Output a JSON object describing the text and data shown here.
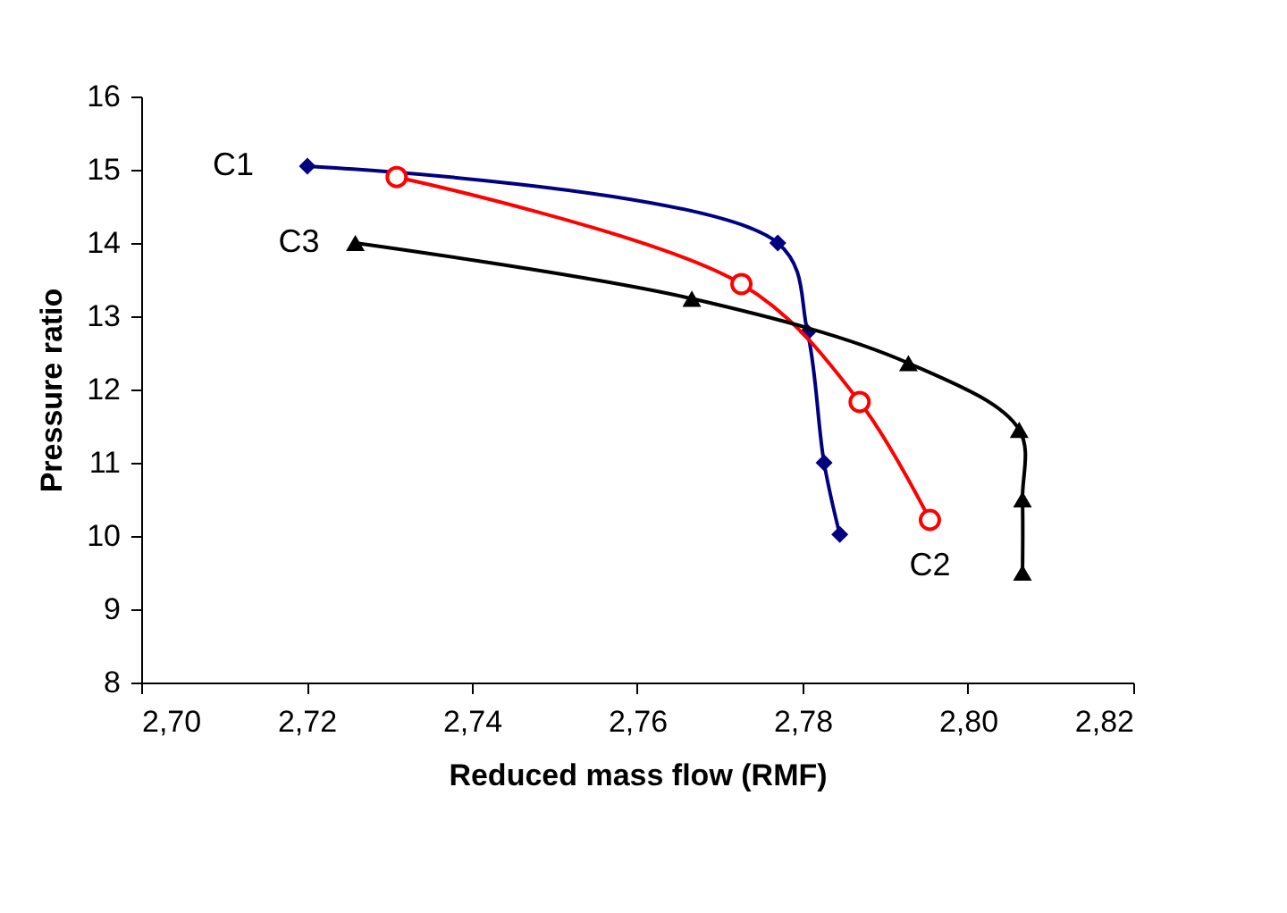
{
  "chart_data": {
    "type": "line",
    "xlabel": "Reduced mass flow (RMF)",
    "ylabel": "Pressure ratio",
    "xlim": [
      2.7,
      2.82
    ],
    "xticks": [
      {
        "value": 2.7,
        "label": "2,70"
      },
      {
        "value": 2.72,
        "label": "2,72"
      },
      {
        "value": 2.74,
        "label": "2,74"
      },
      {
        "value": 2.76,
        "label": "2,76"
      },
      {
        "value": 2.78,
        "label": "2,78"
      },
      {
        "value": 2.8,
        "label": "2,80"
      },
      {
        "value": 2.82,
        "label": "2,82"
      }
    ],
    "ylim": [
      8,
      16
    ],
    "yticks": [
      8,
      9,
      10,
      11,
      12,
      13,
      14,
      15,
      16
    ],
    "grid": false,
    "series": [
      {
        "name": "C1",
        "color": "#000080",
        "marker": "diamond",
        "x": [
          2.7201,
          2.777,
          2.7806,
          2.7826,
          2.7845
        ],
        "values": [
          15.05,
          14.0,
          12.78,
          11.0,
          10.02
        ]
      },
      {
        "name": "C2",
        "color": "#ff0000",
        "marker": "circle",
        "x": [
          2.7309,
          2.7726,
          2.7869,
          2.7954
        ],
        "values": [
          14.9,
          13.44,
          11.83,
          10.22
        ]
      },
      {
        "name": "C3",
        "color": "#000000",
        "marker": "triangle",
        "x": [
          2.7259,
          2.7666,
          2.7928,
          2.8062,
          2.8066,
          2.8066
        ],
        "values": [
          14.0,
          13.24,
          12.36,
          11.45,
          10.5,
          9.5
        ]
      }
    ]
  }
}
